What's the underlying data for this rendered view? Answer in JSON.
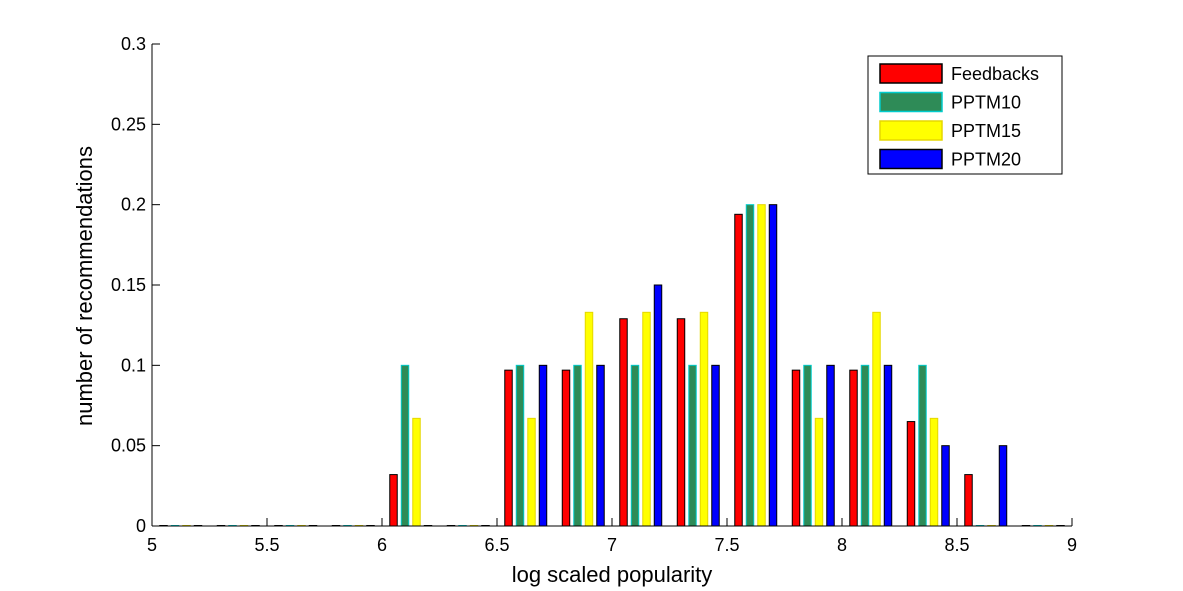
{
  "chart_data": {
    "type": "bar",
    "xlabel": "log scaled popularity",
    "ylabel": "number of recommendations",
    "xlim": [
      5,
      9
    ],
    "ylim": [
      0,
      0.3
    ],
    "xticks": [
      "5",
      "5.5",
      "6",
      "6.5",
      "7",
      "7.5",
      "8",
      "8.5",
      "9"
    ],
    "yticks": [
      "0",
      "0.05",
      "0.1",
      "0.15",
      "0.2",
      "0.25",
      "0.3"
    ],
    "grid": false,
    "legend_position": "top-right",
    "bin_centers": [
      5.125,
      5.375,
      5.625,
      5.875,
      6.125,
      6.375,
      6.625,
      6.875,
      7.125,
      7.375,
      7.625,
      7.875,
      8.125,
      8.375,
      8.625,
      8.875
    ],
    "series": [
      {
        "name": "Feedbacks",
        "color": "#ff0000",
        "edge": "#000000",
        "values": [
          0,
          0,
          0,
          0,
          0.032,
          0,
          0.097,
          0.097,
          0.129,
          0.129,
          0.194,
          0.097,
          0.097,
          0.065,
          0.032,
          0
        ]
      },
      {
        "name": "PPTM10",
        "color": "#2e8b57",
        "edge": "#00cccc",
        "values": [
          0,
          0,
          0,
          0,
          0.1,
          0,
          0.1,
          0.1,
          0.1,
          0.1,
          0.2,
          0.1,
          0.1,
          0.1,
          0,
          0
        ]
      },
      {
        "name": "PPTM15",
        "color": "#ffff00",
        "edge": "#e5d700",
        "values": [
          0,
          0,
          0,
          0,
          0.067,
          0,
          0.067,
          0.133,
          0.133,
          0.133,
          0.2,
          0.067,
          0.133,
          0.067,
          0,
          0
        ]
      },
      {
        "name": "PPTM20",
        "color": "#0000ff",
        "edge": "#000000",
        "values": [
          0,
          0,
          0,
          0,
          0,
          0,
          0.1,
          0.1,
          0.15,
          0.1,
          0.2,
          0.1,
          0.1,
          0.05,
          0.05,
          0
        ]
      }
    ]
  }
}
